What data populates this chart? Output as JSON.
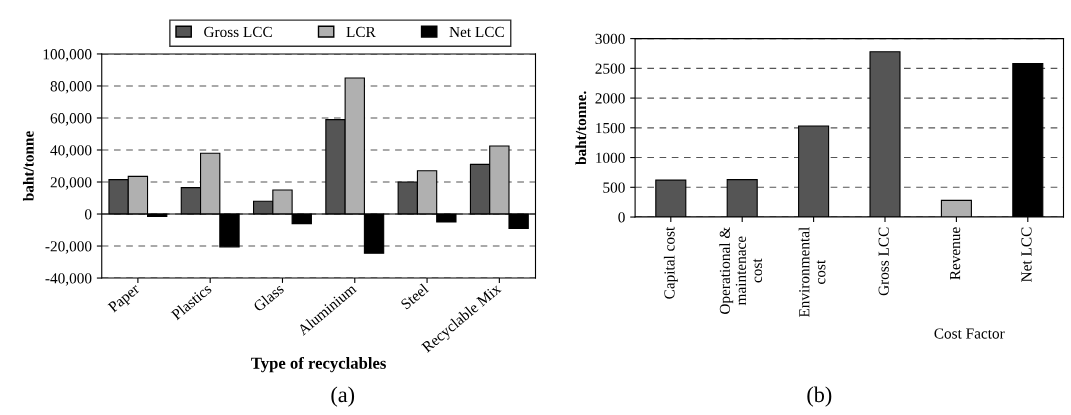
{
  "chart_data": [
    {
      "type": "bar",
      "xlabel": "Type of recyclables",
      "ylabel": "baht/tonne",
      "categories": [
        "Paper",
        "Plastics",
        "Glass",
        "Aluminium",
        "Steel",
        "Recyclable Mix"
      ],
      "series": [
        {
          "name": "Gross LCC",
          "color": "#555555",
          "values": [
            21500,
            16500,
            8000,
            59000,
            20000,
            31000
          ]
        },
        {
          "name": "LCR",
          "color": "#b0b0b0",
          "values": [
            23500,
            38000,
            15000,
            85000,
            27000,
            42500
          ]
        },
        {
          "name": "Net LCC",
          "color": "#000000",
          "values": [
            -1500,
            -20500,
            -6000,
            -24500,
            -5000,
            -9000
          ]
        }
      ],
      "ylim": [
        -40000,
        100000
      ],
      "yticks": [
        {
          "value": -40000,
          "label": "-40,000"
        },
        {
          "value": -20000,
          "label": "-20,000"
        },
        {
          "value": 0,
          "label": "0"
        },
        {
          "value": 20000,
          "label": "20,000"
        },
        {
          "value": 40000,
          "label": "40,000"
        },
        {
          "value": 60000,
          "label": "60,000"
        },
        {
          "value": 80000,
          "label": "80,000"
        },
        {
          "value": 100000,
          "label": "100,000"
        }
      ],
      "grid": "y",
      "legend": "top",
      "annotations": [
        "(a)"
      ]
    },
    {
      "type": "bar",
      "xlabel": "Cost Factor",
      "ylabel": "baht/tonne.",
      "categories": [
        "Capital cost",
        "Operational &\nmaintenace\ncost",
        "Environmental\ncost",
        "Gross LCC",
        "Revenue",
        "Net LCC"
      ],
      "values": [
        620,
        630,
        1530,
        2780,
        280,
        2580
      ],
      "colors": [
        "#555555",
        "#555555",
        "#555555",
        "#555555",
        "#b0b0b0",
        "#000000"
      ],
      "ylim": [
        0,
        3000
      ],
      "yticks": [
        0,
        500,
        1000,
        1500,
        2000,
        2500,
        3000
      ],
      "grid": "y",
      "annotations": [
        "(b)"
      ]
    }
  ]
}
